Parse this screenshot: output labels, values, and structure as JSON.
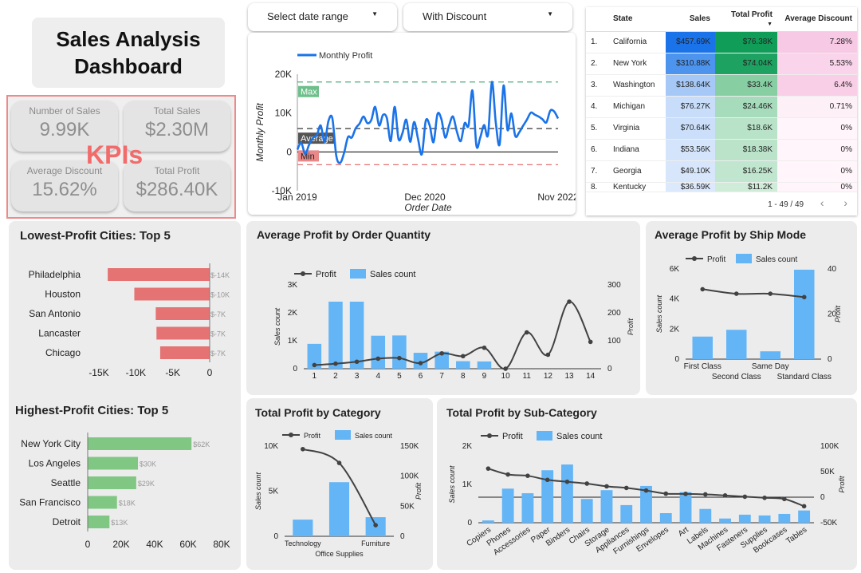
{
  "title": "Sales Analysis Dashboard",
  "kpi_label": "KPIs",
  "kpis": {
    "sales_count": {
      "label": "Number of Sales",
      "value": "9.99K"
    },
    "total_sales": {
      "label": "Total Sales",
      "value": "$2.30M"
    },
    "avg_discount": {
      "label": "Average Discount",
      "value": "15.62%"
    },
    "total_profit": {
      "label": "Total Profit",
      "value": "$286.40K"
    }
  },
  "filters": {
    "date_range": {
      "label": "Select date range"
    },
    "discount": {
      "label": "With Discount"
    }
  },
  "state_table": {
    "headers": [
      "State",
      "Sales",
      "Total Profit",
      "Average Discount"
    ],
    "rows": [
      {
        "n": "1.",
        "state": "California",
        "sales": "$457.69K",
        "profit": "$76.38K",
        "discount": "7.28%",
        "sales_bg": "#1a73e8",
        "profit_bg": "#0f9d58",
        "disc_bg": "#f8c9e4"
      },
      {
        "n": "2.",
        "state": "New York",
        "sales": "$310.88K",
        "profit": "$74.04K",
        "discount": "5.53%",
        "sales_bg": "#4d94ef",
        "profit_bg": "#1ea261",
        "disc_bg": "#fad4ea"
      },
      {
        "n": "3.",
        "state": "Washington",
        "sales": "$138.64K",
        "profit": "$33.4K",
        "discount": "6.4%",
        "sales_bg": "#a6c8f6",
        "profit_bg": "#87cea3",
        "disc_bg": "#f9cfe7"
      },
      {
        "n": "4.",
        "state": "Michigan",
        "sales": "$76.27K",
        "profit": "$24.46K",
        "discount": "0.71%",
        "sales_bg": "#c8ddfa",
        "profit_bg": "#a6dbbb",
        "disc_bg": "#fdf0f7"
      },
      {
        "n": "5.",
        "state": "Virginia",
        "sales": "$70.64K",
        "profit": "$18.6K",
        "discount": "0%",
        "sales_bg": "#cbdffa",
        "profit_bg": "#b9e3c9",
        "disc_bg": "#fff5fa"
      },
      {
        "n": "6.",
        "state": "Indiana",
        "sales": "$53.56K",
        "profit": "$18.38K",
        "discount": "0%",
        "sales_bg": "#d4e5fb",
        "profit_bg": "#bae3ca",
        "disc_bg": "#fff5fa"
      },
      {
        "n": "7.",
        "state": "Georgia",
        "sales": "$49.10K",
        "profit": "$16.25K",
        "discount": "0%",
        "sales_bg": "#d7e6fb",
        "profit_bg": "#c1e6cf",
        "disc_bg": "#fff5fa"
      },
      {
        "n": "8.",
        "state": "Kentucky",
        "sales": "$36.59K",
        "profit": "$11.2K",
        "discount": "0%",
        "sales_bg": "#dce9fc",
        "profit_bg": "#cfecd9",
        "disc_bg": "#fff5fa"
      }
    ],
    "pagination": "1 - 49 / 49"
  },
  "chart_data": [
    {
      "id": "monthly_profit",
      "type": "line",
      "legend": [
        "Monthly Profit"
      ],
      "xlabel": "Order Date",
      "ylabel": "Monthly Profit",
      "x_ticks": [
        "Jan 2019",
        "Dec 2020",
        "Nov 2022"
      ],
      "y_ticks": [
        "20K",
        "10K",
        "0",
        "-10K"
      ],
      "ylim": [
        -10000,
        20000
      ],
      "reference_lines": [
        {
          "label": "Max",
          "value": 18000
        },
        {
          "label": "Average",
          "value": 6000
        },
        {
          "label": "Min",
          "value": -3300
        }
      ],
      "series": [
        {
          "name": "Monthly Profit",
          "values": [
            600,
            2300,
            -500,
            1800,
            3600,
            4300,
            6800,
            2600,
            8000,
            8600,
            -1000,
            -2800,
            -300,
            3800,
            3700,
            6100,
            7300,
            9100,
            7400,
            8200,
            11600,
            6800,
            9500,
            8700,
            2800,
            11600,
            3300,
            4800,
            8300,
            2600,
            7700,
            3400,
            -600,
            8000,
            6800,
            2500,
            9700,
            8500,
            3700,
            6800,
            9100,
            5200,
            2800,
            7400,
            6800,
            15800,
            1700,
            3700,
            6900,
            4400,
            18000,
            7500,
            2000,
            17100,
            5700,
            9900,
            4100,
            5000,
            6700,
            8300,
            10100,
            9600,
            9100,
            8400,
            7600,
            10600,
            10400,
            8600
          ]
        }
      ]
    },
    {
      "id": "lowest_profit_cities",
      "title": "Lowest-Profit Cities: Top 5",
      "type": "bar",
      "categories": [
        "Philadelphia",
        "Houston",
        "San Antonio",
        "Lancaster",
        "Chicago"
      ],
      "values": [
        -13800,
        -10200,
        -7300,
        -7200,
        -6700
      ],
      "data_labels": [
        "$-14K",
        "$-10K",
        "$-7K",
        "$-7K",
        "$-7K"
      ],
      "x_ticks": [
        "-15K",
        "-10K",
        "-5K",
        "0"
      ],
      "xlim": [
        -15000,
        0
      ],
      "color": "#e57373"
    },
    {
      "id": "highest_profit_cities",
      "title": "Highest-Profit Cities: Top 5",
      "type": "bar",
      "categories": [
        "New York City",
        "Los Angeles",
        "Seattle",
        "San Francisco",
        "Detroit"
      ],
      "values": [
        62000,
        30000,
        29000,
        17500,
        13000
      ],
      "data_labels": [
        "$62K",
        "$30K",
        "$29K",
        "$18K",
        "$13K"
      ],
      "x_ticks": [
        "0",
        "20K",
        "40K",
        "60K",
        "80K"
      ],
      "xlim": [
        0,
        80000
      ],
      "color": "#81c784"
    },
    {
      "id": "profit_by_quantity",
      "title": "Average Profit by Order Quantity",
      "type": "bar",
      "categories": [
        "1",
        "2",
        "3",
        "4",
        "5",
        "6",
        "7",
        "8",
        "9",
        "10",
        "11",
        "12",
        "13",
        "14"
      ],
      "series": [
        {
          "name": "Sales count",
          "values": [
            890,
            2400,
            2400,
            1180,
            1190,
            570,
            610,
            270,
            260,
            0,
            0,
            0,
            0,
            0
          ]
        },
        {
          "name": "Profit",
          "values": [
            13,
            18,
            25,
            36,
            38,
            20,
            55,
            45,
            75,
            0,
            130,
            50,
            240,
            96
          ]
        }
      ],
      "y_left_ticks": [
        "3K",
        "2K",
        "1K",
        "0"
      ],
      "y_right_ticks": [
        "300",
        "200",
        "100",
        "0"
      ],
      "ylabel_left": "Sales count",
      "ylabel_right": "Profit"
    },
    {
      "id": "profit_by_ship_mode",
      "title": "Average Profit by Ship Mode",
      "type": "bar",
      "categories": [
        "First Class",
        "Second Class",
        "Same Day",
        "Standard Class"
      ],
      "series": [
        {
          "name": "Sales count",
          "values": [
            1500,
            1950,
            520,
            5950
          ]
        },
        {
          "name": "Profit",
          "values": [
            31,
            29,
            29,
            27.5
          ]
        }
      ],
      "y_left_ticks": [
        "6K",
        "4K",
        "2K",
        "0"
      ],
      "y_right_ticks": [
        "40",
        "20",
        "0"
      ],
      "ylabel_left": "Sales count",
      "ylabel_right": "Profit"
    },
    {
      "id": "profit_by_category",
      "title": "Total Profit by Category",
      "type": "bar",
      "categories": [
        "Technology",
        "Office Supplies",
        "Furniture"
      ],
      "series": [
        {
          "name": "Sales count",
          "values": [
            1850,
            6000,
            2120
          ]
        },
        {
          "name": "Profit",
          "values": [
            145000,
            122000,
            18500
          ]
        }
      ],
      "y_left_ticks": [
        "10K",
        "5K",
        "0"
      ],
      "y_right_ticks": [
        "150K",
        "100K",
        "50K",
        "0"
      ],
      "ylabel_left": "Sales count",
      "ylabel_right": "Profit"
    },
    {
      "id": "profit_by_subcategory",
      "title": "Total Profit by Sub-Category",
      "type": "bar",
      "categories": [
        "Copiers",
        "Phones",
        "Accessories",
        "Paper",
        "Binders",
        "Chairs",
        "Storage",
        "Appliances",
        "Furnishings",
        "Envelopes",
        "Art",
        "Labels",
        "Machines",
        "Fasteners",
        "Supplies",
        "Bookcases",
        "Tables"
      ],
      "series": [
        {
          "name": "Sales count",
          "values": [
            60,
            890,
            770,
            1370,
            1520,
            620,
            850,
            460,
            960,
            250,
            800,
            360,
            110,
            210,
            190,
            230,
            320
          ]
        },
        {
          "name": "Profit",
          "values": [
            56000,
            44500,
            41900,
            34000,
            30200,
            26600,
            21300,
            18100,
            13100,
            6900,
            6500,
            5500,
            3400,
            950,
            -1200,
            -3500,
            -17700
          ]
        }
      ],
      "y_left_ticks": [
        "2K",
        "1K",
        "0"
      ],
      "y_right_ticks": [
        "100K",
        "50K",
        "0",
        "-50K"
      ],
      "ylabel_left": "Sales count",
      "ylabel_right": "Profit"
    }
  ],
  "colors": {
    "bar_blue": "#64b5f6",
    "line": "#424242",
    "monthly_line": "#1a73e8"
  }
}
